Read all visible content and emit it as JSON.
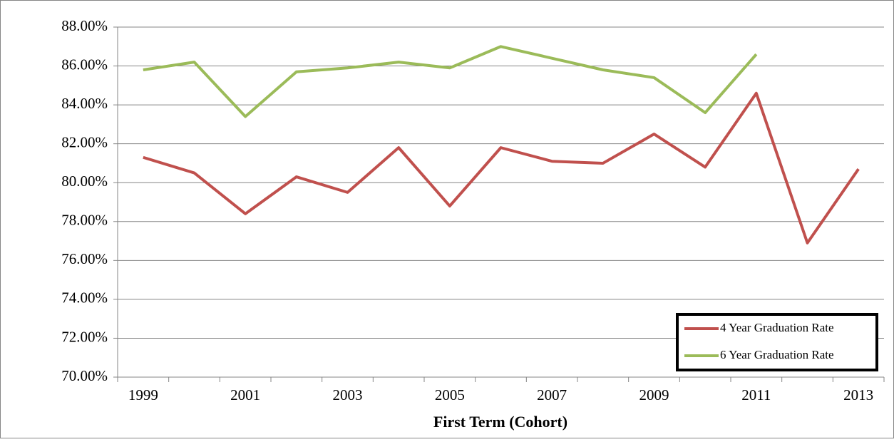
{
  "chart_data": {
    "type": "line",
    "x_label": "First Term (Cohort)",
    "categories": [
      "1999",
      null,
      "2001",
      null,
      "2003",
      null,
      "2005",
      null,
      "2007",
      null,
      "2009",
      null,
      "2011",
      null,
      "2013"
    ],
    "series": [
      {
        "name": "4 Year Graduation Rate",
        "color": "#c0504d",
        "values": [
          81.3,
          80.5,
          78.4,
          80.3,
          79.5,
          81.8,
          78.8,
          81.8,
          81.1,
          81.0,
          82.5,
          80.8,
          84.6,
          76.9,
          80.7
        ]
      },
      {
        "name": "6 Year Graduation Rate",
        "color": "#9bbb59",
        "values": [
          85.8,
          86.2,
          83.4,
          85.7,
          85.9,
          86.2,
          85.9,
          87.0,
          86.4,
          85.8,
          85.4,
          83.6,
          86.6,
          null,
          null
        ]
      }
    ],
    "ylim": [
      70,
      88
    ],
    "yticks": [
      {
        "value": 70,
        "label": "70.00%"
      },
      {
        "value": 72,
        "label": "72.00%"
      },
      {
        "value": 74,
        "label": "74.00%"
      },
      {
        "value": 76,
        "label": "76.00%"
      },
      {
        "value": 78,
        "label": "78.00%"
      },
      {
        "value": 80,
        "label": "80.00%"
      },
      {
        "value": 82,
        "label": "82.00%"
      },
      {
        "value": 84,
        "label": "84.00%"
      },
      {
        "value": 86,
        "label": "86.00%"
      },
      {
        "value": 88,
        "label": "88.00%"
      }
    ],
    "grid": true,
    "legend": "lower right"
  }
}
